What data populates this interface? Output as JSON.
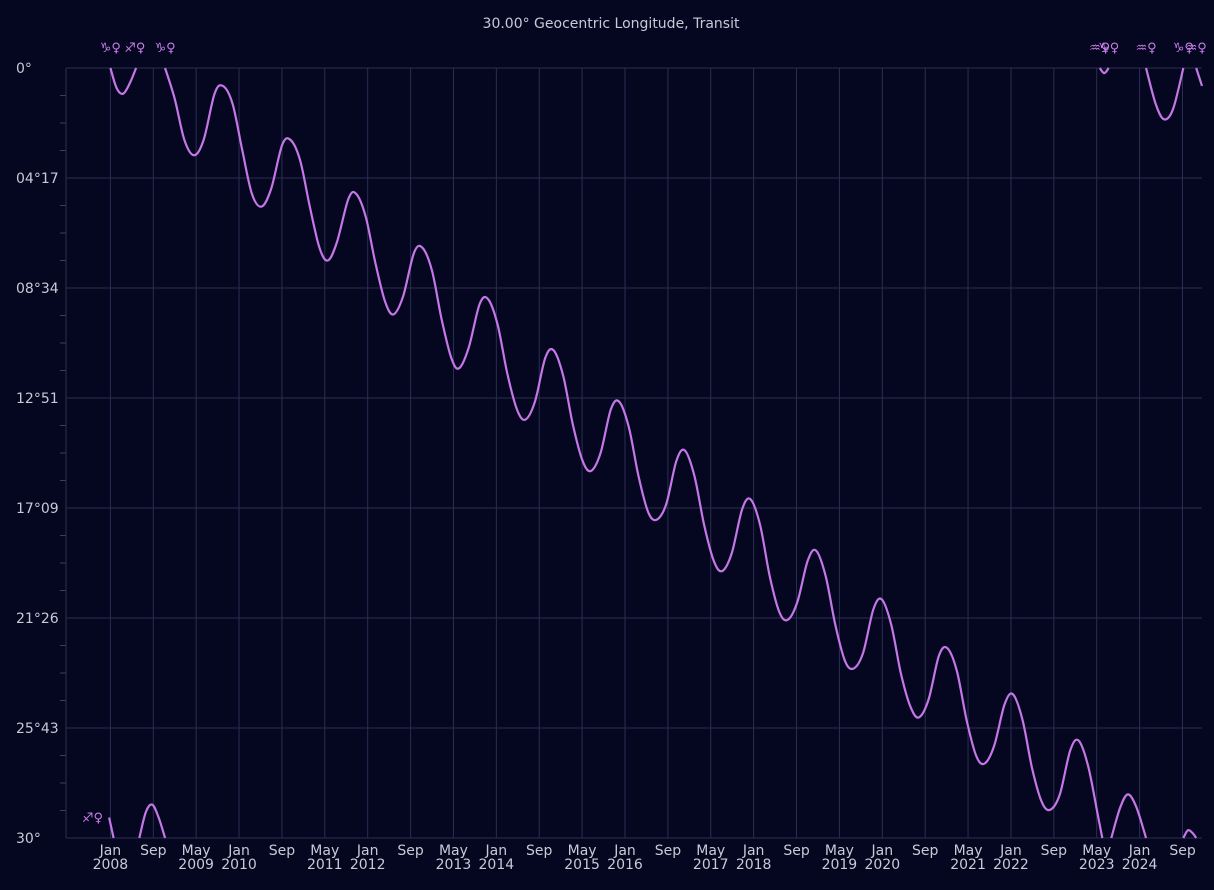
{
  "chart_data": {
    "type": "line",
    "title": "30.00° Geocentric Longitude,  Transit",
    "ylabel": "",
    "xlabel": "",
    "y_ticks": [
      "0°",
      "04°17",
      "08°34",
      "12°51",
      "17°09",
      "21°26",
      "25°43",
      "30°"
    ],
    "y_range_degrees": [
      0,
      30
    ],
    "y_inverted": true,
    "grid": true,
    "x_ticks": [
      {
        "month": "Jan",
        "year": "2008",
        "t": 2008.0
      },
      {
        "month": "Sep",
        "year": "",
        "t": 2008.667
      },
      {
        "month": "May",
        "year": "2009",
        "t": 2009.333
      },
      {
        "month": "Jan",
        "year": "2010",
        "t": 2010.0
      },
      {
        "month": "Sep",
        "year": "",
        "t": 2010.667
      },
      {
        "month": "May",
        "year": "2011",
        "t": 2011.333
      },
      {
        "month": "Jan",
        "year": "2012",
        "t": 2012.0
      },
      {
        "month": "Sep",
        "year": "",
        "t": 2012.667
      },
      {
        "month": "May",
        "year": "2013",
        "t": 2013.333
      },
      {
        "month": "Jan",
        "year": "2014",
        "t": 2014.0
      },
      {
        "month": "Sep",
        "year": "",
        "t": 2014.667
      },
      {
        "month": "May",
        "year": "2015",
        "t": 2015.333
      },
      {
        "month": "Jan",
        "year": "2016",
        "t": 2016.0
      },
      {
        "month": "Sep",
        "year": "",
        "t": 2016.667
      },
      {
        "month": "May",
        "year": "2017",
        "t": 2017.333
      },
      {
        "month": "Jan",
        "year": "2018",
        "t": 2018.0
      },
      {
        "month": "Sep",
        "year": "",
        "t": 2018.667
      },
      {
        "month": "May",
        "year": "2019",
        "t": 2019.333
      },
      {
        "month": "Jan",
        "year": "2020",
        "t": 2020.0
      },
      {
        "month": "Sep",
        "year": "",
        "t": 2020.667
      },
      {
        "month": "May",
        "year": "2021",
        "t": 2021.333
      },
      {
        "month": "Jan",
        "year": "2022",
        "t": 2022.0
      },
      {
        "month": "Sep",
        "year": "",
        "t": 2022.667
      },
      {
        "month": "May",
        "year": "2023",
        "t": 2023.333
      },
      {
        "month": "Jan",
        "year": "2024",
        "t": 2024.0
      },
      {
        "month": "Sep",
        "year": "",
        "t": 2024.667
      }
    ],
    "series": [
      {
        "color": "#c477e6",
        "note_units": "x in decimal years, y in degrees of offset from sign start (0 at top, 30 at bottom)",
        "points": [
          [
            2007.98,
            29.2
          ],
          [
            2008.05,
            30.0
          ],
          [
            2008.0,
            0.0
          ],
          [
            2008.1,
            0.8
          ],
          [
            2008.2,
            1.0
          ],
          [
            2008.3,
            0.6
          ],
          [
            2008.4,
            0.0
          ],
          [
            2008.45,
            30.0
          ],
          [
            2008.55,
            29.0
          ],
          [
            2008.65,
            28.7
          ],
          [
            2008.75,
            29.2
          ],
          [
            2008.85,
            30.0
          ],
          [
            2008.85,
            0.0
          ],
          [
            2009.0,
            1.2
          ],
          [
            2009.15,
            2.8
          ],
          [
            2009.3,
            3.4
          ],
          [
            2009.45,
            2.8
          ],
          [
            2009.62,
            1.0
          ],
          [
            2009.75,
            0.7
          ],
          [
            2009.9,
            1.4
          ],
          [
            2010.05,
            3.2
          ],
          [
            2010.2,
            4.9
          ],
          [
            2010.35,
            5.4
          ],
          [
            2010.5,
            4.7
          ],
          [
            2010.67,
            3.0
          ],
          [
            2010.8,
            2.8
          ],
          [
            2010.95,
            3.6
          ],
          [
            2011.1,
            5.4
          ],
          [
            2011.25,
            7.0
          ],
          [
            2011.38,
            7.5
          ],
          [
            2011.52,
            6.8
          ],
          [
            2011.7,
            5.1
          ],
          [
            2011.82,
            4.9
          ],
          [
            2011.97,
            5.8
          ],
          [
            2012.12,
            7.6
          ],
          [
            2012.27,
            9.1
          ],
          [
            2012.4,
            9.6
          ],
          [
            2012.55,
            8.9
          ],
          [
            2012.72,
            7.2
          ],
          [
            2012.85,
            7.0
          ],
          [
            2013.0,
            7.9
          ],
          [
            2013.15,
            9.8
          ],
          [
            2013.3,
            11.3
          ],
          [
            2013.42,
            11.7
          ],
          [
            2013.57,
            10.9
          ],
          [
            2013.74,
            9.2
          ],
          [
            2013.87,
            9.0
          ],
          [
            2014.02,
            10.0
          ],
          [
            2014.17,
            11.9
          ],
          [
            2014.32,
            13.3
          ],
          [
            2014.45,
            13.7
          ],
          [
            2014.6,
            13.0
          ],
          [
            2014.76,
            11.3
          ],
          [
            2014.89,
            11.0
          ],
          [
            2015.04,
            12.0
          ],
          [
            2015.19,
            13.9
          ],
          [
            2015.34,
            15.3
          ],
          [
            2015.47,
            15.7
          ],
          [
            2015.62,
            15.0
          ],
          [
            2015.78,
            13.3
          ],
          [
            2015.91,
            13.0
          ],
          [
            2016.06,
            14.0
          ],
          [
            2016.21,
            15.9
          ],
          [
            2016.36,
            17.3
          ],
          [
            2016.49,
            17.6
          ],
          [
            2016.64,
            17.0
          ],
          [
            2016.8,
            15.3
          ],
          [
            2016.93,
            14.9
          ],
          [
            2017.08,
            15.9
          ],
          [
            2017.23,
            17.8
          ],
          [
            2017.38,
            19.2
          ],
          [
            2017.51,
            19.6
          ],
          [
            2017.66,
            18.9
          ],
          [
            2017.82,
            17.2
          ],
          [
            2017.95,
            16.8
          ],
          [
            2018.1,
            17.8
          ],
          [
            2018.25,
            19.8
          ],
          [
            2018.4,
            21.2
          ],
          [
            2018.53,
            21.5
          ],
          [
            2018.68,
            20.8
          ],
          [
            2018.84,
            19.2
          ],
          [
            2018.97,
            18.8
          ],
          [
            2019.12,
            19.8
          ],
          [
            2019.27,
            21.7
          ],
          [
            2019.42,
            23.1
          ],
          [
            2019.55,
            23.4
          ],
          [
            2019.7,
            22.8
          ],
          [
            2019.86,
            21.1
          ],
          [
            2019.99,
            20.7
          ],
          [
            2020.14,
            21.7
          ],
          [
            2020.29,
            23.6
          ],
          [
            2020.44,
            24.9
          ],
          [
            2020.57,
            25.3
          ],
          [
            2020.72,
            24.6
          ],
          [
            2020.88,
            22.9
          ],
          [
            2021.01,
            22.6
          ],
          [
            2021.16,
            23.5
          ],
          [
            2021.31,
            25.4
          ],
          [
            2021.46,
            26.8
          ],
          [
            2021.59,
            27.1
          ],
          [
            2021.74,
            26.4
          ],
          [
            2021.9,
            24.8
          ],
          [
            2022.03,
            24.4
          ],
          [
            2022.18,
            25.4
          ],
          [
            2022.33,
            27.3
          ],
          [
            2022.48,
            28.6
          ],
          [
            2022.61,
            28.9
          ],
          [
            2022.76,
            28.3
          ],
          [
            2022.92,
            26.6
          ],
          [
            2023.05,
            26.2
          ],
          [
            2023.2,
            27.2
          ],
          [
            2023.35,
            29.1
          ],
          [
            2023.42,
            30.0
          ],
          [
            2023.38,
            0.0
          ],
          [
            2023.45,
            0.2
          ],
          [
            2023.52,
            0.0
          ],
          [
            2023.56,
            30.0
          ],
          [
            2023.7,
            28.8
          ],
          [
            2023.82,
            28.3
          ],
          [
            2023.95,
            28.8
          ],
          [
            2024.1,
            30.0
          ],
          [
            2024.1,
            0.0
          ],
          [
            2024.25,
            1.4
          ],
          [
            2024.38,
            2.0
          ],
          [
            2024.52,
            1.6
          ],
          [
            2024.68,
            0.0
          ],
          [
            2024.68,
            30.0
          ],
          [
            2024.75,
            29.7
          ],
          [
            2024.82,
            29.8
          ],
          [
            2024.88,
            30.0
          ],
          [
            2024.88,
            0.0
          ],
          [
            2024.97,
            0.7
          ]
        ]
      }
    ],
    "ingress_markers_top": [
      {
        "label": "♑♀",
        "t": 2008.0
      },
      {
        "label": "♐♀",
        "t": 2008.38
      },
      {
        "label": "♑♀",
        "t": 2008.85
      },
      {
        "label": "♒♀",
        "t": 2023.38
      },
      {
        "label": "♑♀",
        "t": 2023.52
      },
      {
        "label": "♒♀",
        "t": 2024.1
      },
      {
        "label": "♑♀",
        "t": 2024.68
      },
      {
        "label": "♒♀",
        "t": 2024.88
      }
    ],
    "ingress_markers_bottom": [
      {
        "label": "♐♀",
        "t": 2007.98
      }
    ]
  }
}
